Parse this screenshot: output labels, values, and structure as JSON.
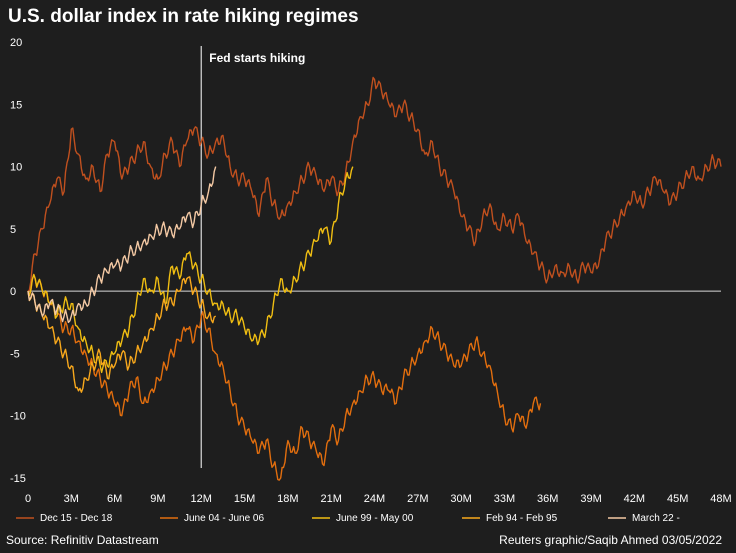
{
  "chart_data": {
    "type": "line",
    "title": "U.S. dollar index in rate hiking regimes",
    "xlabel": "",
    "ylabel": "",
    "x_tick_labels": [
      "0",
      "3M",
      "6M",
      "9M",
      "12M",
      "15M",
      "18M",
      "21M",
      "24M",
      "27M",
      "30M",
      "33M",
      "36M",
      "39M",
      "42M",
      "45M",
      "48M"
    ],
    "y_tick_labels": [
      "20",
      "15",
      "10",
      "5",
      "0",
      "-5",
      "-10",
      "-15"
    ],
    "xlim": [
      0,
      48
    ],
    "ylim": [
      -15,
      20
    ],
    "grid": false,
    "legend_position": "bottom",
    "annotation": {
      "text": "Fed starts hiking",
      "x": 12
    },
    "series": [
      {
        "name": "Dec 15 - Dec 18",
        "color": "#c0501e",
        "x": [
          0,
          0.5,
          1,
          1.5,
          2,
          2.5,
          3,
          3.5,
          4,
          4.5,
          5,
          5.5,
          6,
          6.5,
          7,
          7.5,
          8,
          8.5,
          9,
          9.5,
          10,
          10.5,
          11,
          11.5,
          12,
          12.5,
          13,
          13.5,
          14,
          14.5,
          15,
          15.5,
          16,
          16.5,
          17,
          17.5,
          18,
          18.5,
          19,
          19.5,
          20,
          20.5,
          21,
          21.5,
          22,
          22.5,
          23,
          23.5,
          24,
          24.5,
          25,
          25.5,
          26,
          26.5,
          27,
          27.5,
          28,
          28.5,
          29,
          29.5,
          30,
          30.5,
          31,
          31.5,
          32,
          32.5,
          33,
          33.5,
          34,
          34.5,
          35,
          35.5,
          36,
          36.5,
          37,
          37.5,
          38,
          38.5,
          39,
          39.5,
          40,
          40.5,
          41,
          41.5,
          42,
          42.5,
          43,
          43.5,
          44,
          44.5,
          45,
          45.5,
          46,
          46.5,
          47,
          47.5,
          48
        ],
        "values": [
          0,
          3,
          5,
          7,
          9,
          8,
          13,
          11,
          9,
          10,
          8,
          11,
          12,
          9,
          10,
          11,
          12,
          10,
          9,
          11,
          12,
          10,
          12,
          13,
          12,
          11,
          12,
          12.5,
          10,
          9,
          9,
          8,
          6,
          9,
          7,
          6,
          7,
          8,
          9,
          10,
          9,
          8,
          9,
          8,
          9.5,
          12,
          14,
          15,
          17,
          16,
          15,
          14,
          15,
          14,
          13,
          11,
          12,
          10,
          9,
          8,
          6,
          5,
          4,
          6,
          7,
          5,
          6,
          5,
          6,
          4,
          3,
          2,
          1,
          2,
          1.5,
          2,
          1,
          2,
          1.5,
          2,
          4,
          5,
          6,
          7,
          8,
          7,
          8,
          9,
          8,
          7,
          8,
          9,
          10,
          9,
          10,
          10.5,
          10
        ]
      },
      {
        "name": "June 04 - June 06",
        "color": "#e26e0e",
        "x": [
          0,
          0.5,
          1,
          1.5,
          2,
          2.5,
          3,
          3.5,
          4,
          4.5,
          5,
          5.5,
          6,
          6.5,
          7,
          7.5,
          8,
          8.5,
          9,
          9.5,
          10,
          10.5,
          11,
          11.5,
          12,
          12.5,
          13,
          13.5,
          14,
          14.5,
          15,
          15.5,
          16,
          16.5,
          17,
          17.5,
          18,
          18.5,
          19,
          19.5,
          20,
          20.5,
          21,
          21.5,
          22,
          22.5,
          23,
          23.5,
          24,
          24.5,
          25,
          25.5,
          26,
          26.5,
          27,
          27.5,
          28,
          28.5,
          29,
          29.5,
          30,
          30.5,
          31,
          31.5,
          32,
          32.5,
          33,
          33.5,
          34,
          34.5,
          35,
          35.5
        ],
        "values": [
          0,
          1,
          0,
          -1,
          -2,
          -3,
          -3,
          -4,
          -5,
          -6,
          -7,
          -8,
          -9,
          -10,
          -8,
          -7,
          -9,
          -8,
          -7,
          -6,
          -5,
          -4,
          -3,
          -4,
          -2,
          -3,
          -5,
          -6,
          -8,
          -10,
          -11,
          -12,
          -13,
          -12,
          -14,
          -15,
          -12,
          -13,
          -11,
          -12,
          -13,
          -14,
          -11,
          -12,
          -10,
          -9,
          -8,
          -7,
          -7,
          -8,
          -8,
          -9,
          -7,
          -6,
          -5,
          -4,
          -3,
          -4,
          -5,
          -6,
          -6,
          -5,
          -4,
          -5,
          -6,
          -8,
          -10,
          -11,
          -10,
          -11,
          -9,
          -9
        ]
      },
      {
        "name": "June 99 - May 00",
        "color": "#f0be12",
        "x": [
          0,
          0.5,
          1,
          1.5,
          2,
          2.5,
          3,
          3.5,
          4,
          4.5,
          5,
          5.5,
          6,
          6.5,
          7,
          7.5,
          8,
          8.5,
          9,
          9.5,
          10,
          10.5,
          11,
          11.5,
          12,
          12.5,
          13,
          13.5,
          14,
          14.5,
          15,
          15.5,
          16,
          16.5,
          17,
          17.5,
          18,
          18.5,
          19,
          19.5,
          20,
          20.5,
          21,
          21.5,
          22,
          22.5
        ],
        "values": [
          0,
          1,
          0,
          -1,
          -2,
          -1,
          -1,
          -3,
          -4,
          -5,
          -6,
          -6,
          -5,
          -4,
          -3,
          -1,
          1,
          0,
          1,
          -1,
          2,
          1,
          3,
          2,
          1,
          0,
          -1,
          -1,
          -2,
          -2,
          -3,
          -4,
          -4,
          -3,
          -1,
          1,
          0,
          1,
          2,
          3,
          4,
          5,
          4,
          7,
          9,
          10
        ]
      },
      {
        "name": "Feb 94 - Feb 95",
        "color": "#f8a81c",
        "x": [
          0,
          0.5,
          1,
          1.5,
          2,
          2.5,
          3,
          3.5,
          4,
          4.5,
          5,
          5.5,
          6,
          6.5,
          7,
          7.5,
          8,
          8.5,
          9,
          9.5,
          10,
          10.5,
          11,
          11.5,
          12,
          12.5,
          13
        ],
        "values": [
          0,
          -1,
          -2,
          -3,
          -4,
          -5,
          -6,
          -8,
          -7,
          -6,
          -5,
          -7,
          -6,
          -5,
          -6,
          -5,
          -4,
          -3,
          -2,
          -1,
          -1,
          0,
          1,
          0,
          -1,
          -2,
          -2
        ]
      },
      {
        "name": "March 22 -",
        "color": "#f4c9a4",
        "x": [
          0,
          0.5,
          1,
          1.5,
          2,
          2.5,
          3,
          3.5,
          4,
          4.5,
          5,
          5.5,
          6,
          6.5,
          7,
          7.5,
          8,
          8.5,
          9,
          9.5,
          10,
          10.5,
          11,
          11.5,
          12,
          12.5,
          13
        ],
        "values": [
          0,
          -1,
          -2,
          -1,
          -1.5,
          -2,
          -2,
          -1,
          -1,
          0,
          1,
          1.5,
          2,
          2,
          3,
          3.5,
          4,
          4.5,
          5,
          5,
          4.5,
          5,
          6,
          5.5,
          7,
          8,
          10
        ]
      }
    ]
  },
  "footer": {
    "source": "Source: Refinitiv Datastream",
    "credit": "Reuters graphic/Saqib Ahmed 03/05/2022"
  }
}
